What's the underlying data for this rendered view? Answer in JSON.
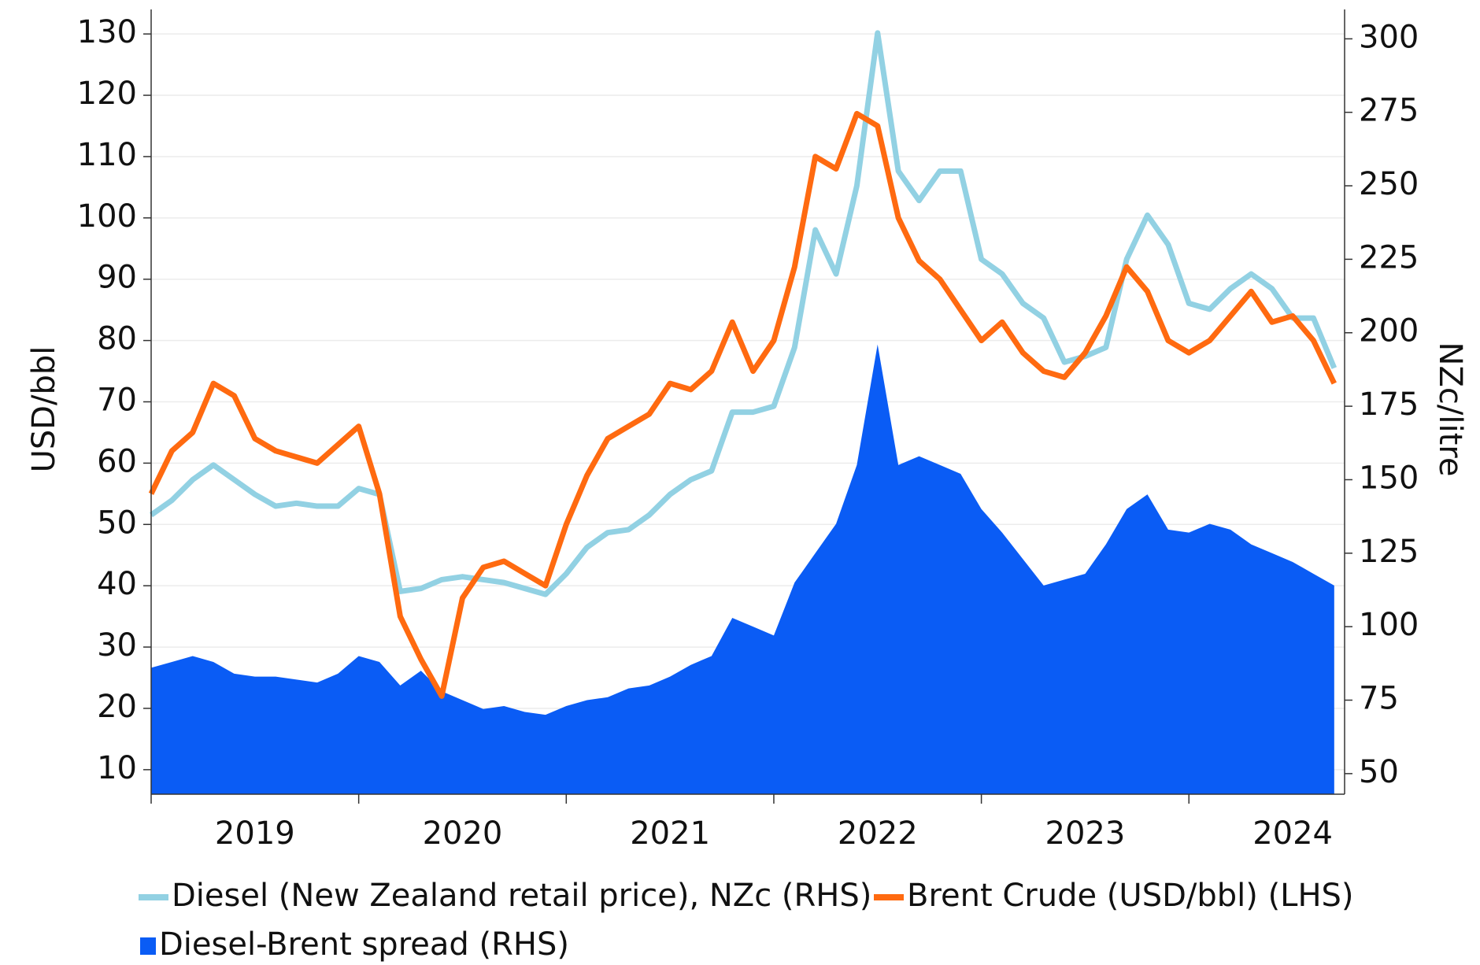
{
  "chart_data": {
    "type": "line",
    "y_label": "USD/bbl",
    "y2_label": "NZc/litre",
    "x": [
      2019.0,
      2019.1,
      2019.2,
      2019.3,
      2019.4,
      2019.5,
      2019.6,
      2019.7,
      2019.8,
      2019.9,
      2020.0,
      2020.1,
      2020.2,
      2020.3,
      2020.4,
      2020.5,
      2020.6,
      2020.7,
      2020.8,
      2020.9,
      2021.0,
      2021.1,
      2021.2,
      2021.3,
      2021.4,
      2021.5,
      2021.6,
      2021.7,
      2021.8,
      2021.9,
      2022.0,
      2022.1,
      2022.2,
      2022.3,
      2022.4,
      2022.5,
      2022.6,
      2022.7,
      2022.8,
      2022.9,
      2023.0,
      2023.1,
      2023.2,
      2023.3,
      2023.4,
      2023.5,
      2023.6,
      2023.7,
      2023.8,
      2023.9,
      2024.0,
      2024.1,
      2024.2,
      2024.3,
      2024.4,
      2024.5,
      2024.6,
      2024.7
    ],
    "xlim": [
      2019.0,
      2024.75
    ],
    "xticks": [
      {
        "value": 2019.5,
        "label": "2019"
      },
      {
        "value": 2020.5,
        "label": "2020"
      },
      {
        "value": 2021.5,
        "label": "2021"
      },
      {
        "value": 2022.5,
        "label": "2022"
      },
      {
        "value": 2023.5,
        "label": "2023"
      },
      {
        "value": 2024.5,
        "label": "2024"
      }
    ],
    "ylim": [
      6,
      134
    ],
    "yticks": [
      10,
      20,
      30,
      40,
      50,
      60,
      70,
      80,
      90,
      100,
      110,
      120,
      130
    ],
    "y2lim": [
      43,
      310
    ],
    "y2ticks": [
      50,
      75,
      100,
      125,
      150,
      175,
      200,
      225,
      250,
      275,
      300
    ],
    "grid": true,
    "legend": "bottom",
    "series": [
      {
        "name": "Diesel (New Zealand retail price), NZc (RHS)",
        "color": "#92d1e3",
        "axis": "y2",
        "type": "line",
        "values": [
          138,
          143,
          150,
          155,
          150,
          145,
          141,
          142,
          141,
          141,
          147,
          145,
          112,
          113,
          116,
          117,
          116,
          115,
          113,
          111,
          118,
          127,
          132,
          133,
          138,
          145,
          150,
          153,
          173,
          173,
          175,
          195,
          235,
          220,
          250,
          302,
          255,
          245,
          255,
          255,
          225,
          220,
          210,
          205,
          190,
          192,
          195,
          225,
          240,
          230,
          210,
          208,
          215,
          220,
          215,
          205,
          205,
          188
        ]
      },
      {
        "name": "Brent Crude (USD/bbl) (LHS)",
        "color": "#ff6a10",
        "type": "line",
        "values": [
          55,
          62,
          65,
          73,
          71,
          64,
          62,
          61,
          60,
          63,
          66,
          55,
          35,
          28,
          22,
          38,
          43,
          44,
          42,
          40,
          50,
          58,
          64,
          66,
          68,
          73,
          72,
          75,
          83,
          75,
          80,
          92,
          110,
          108,
          117,
          115,
          100,
          93,
          90,
          85,
          80,
          83,
          78,
          75,
          74,
          78,
          84,
          92,
          88,
          80,
          78,
          80,
          84,
          88,
          83,
          84,
          80,
          73
        ]
      },
      {
        "name": "Diesel-Brent spread (RHS)",
        "color": "#0a5cf5",
        "axis": "y2",
        "type": "area",
        "values": [
          86,
          88,
          90,
          88,
          84,
          83,
          83,
          82,
          81,
          84,
          90,
          88,
          80,
          85,
          78,
          75,
          72,
          73,
          71,
          70,
          73,
          75,
          76,
          79,
          80,
          83,
          87,
          90,
          103,
          100,
          97,
          115,
          125,
          135,
          155,
          196,
          155,
          158,
          155,
          152,
          140,
          132,
          123,
          114,
          116,
          118,
          128,
          140,
          145,
          133,
          132,
          135,
          133,
          128,
          125,
          122,
          118,
          114
        ]
      }
    ]
  }
}
